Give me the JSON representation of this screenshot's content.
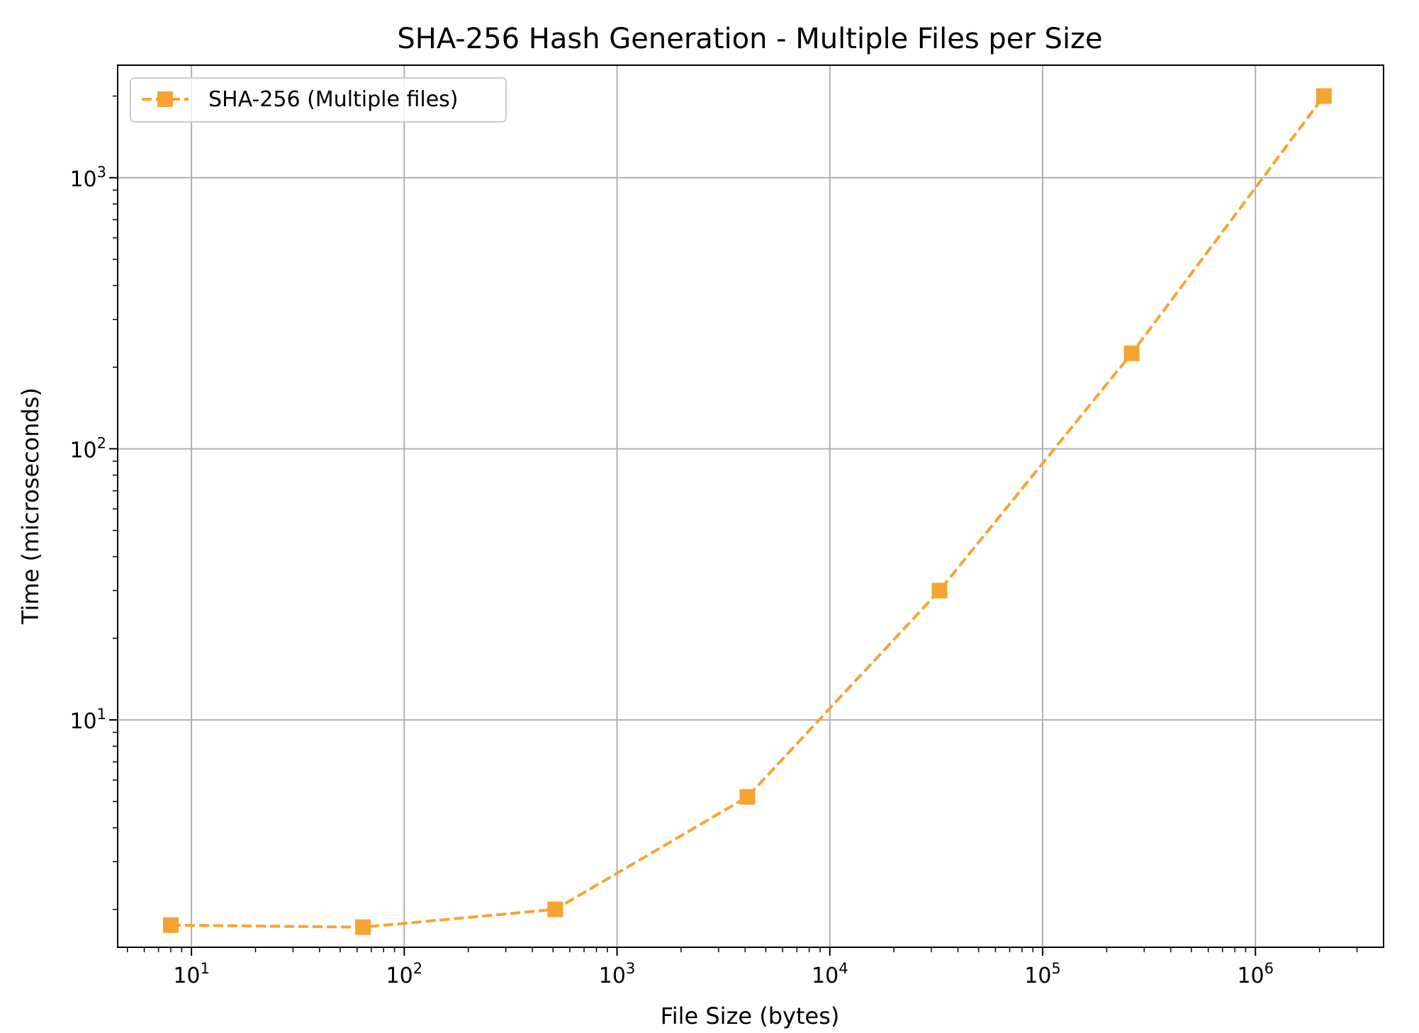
{
  "chart_data": {
    "type": "line",
    "title": "SHA-256 Hash Generation - Multiple Files per Size",
    "xlabel": "File Size (bytes)",
    "ylabel": "Time (microseconds)",
    "x_scale": "log",
    "y_scale": "log",
    "xlim": [
      4.5,
      4000000
    ],
    "ylim": [
      1.45,
      2600
    ],
    "x_major_ticks": [
      {
        "value": 10,
        "base": "10",
        "exp": "1"
      },
      {
        "value": 100,
        "base": "10",
        "exp": "2"
      },
      {
        "value": 1000,
        "base": "10",
        "exp": "3"
      },
      {
        "value": 10000,
        "base": "10",
        "exp": "4"
      },
      {
        "value": 100000,
        "base": "10",
        "exp": "5"
      },
      {
        "value": 1000000,
        "base": "10",
        "exp": "6"
      }
    ],
    "y_major_ticks": [
      {
        "value": 10,
        "base": "10",
        "exp": "1"
      },
      {
        "value": 100,
        "base": "10",
        "exp": "2"
      },
      {
        "value": 1000,
        "base": "10",
        "exp": "3"
      }
    ],
    "grid": true,
    "legend_position": "top-left",
    "series": [
      {
        "name": "SHA-256 (Multiple files)",
        "color": "#f5a431",
        "line_style": "dashed",
        "marker": "square",
        "x": [
          8,
          64,
          512,
          4096,
          32768,
          262144,
          2097152
        ],
        "y": [
          1.75,
          1.72,
          2.0,
          5.2,
          30,
          225,
          2000
        ]
      }
    ]
  }
}
